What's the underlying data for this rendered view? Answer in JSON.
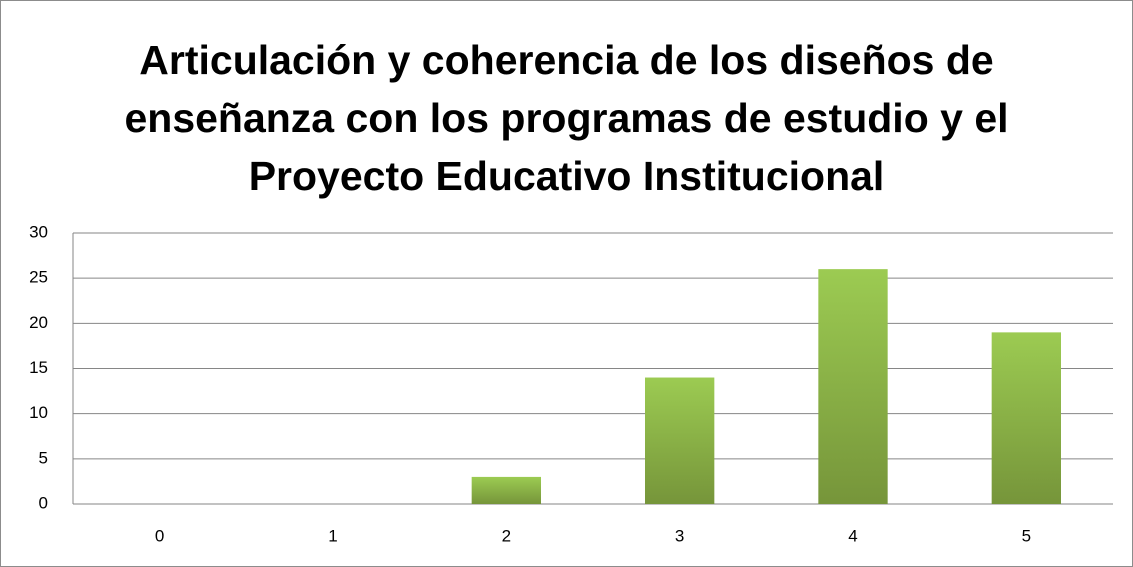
{
  "chart_data": {
    "type": "bar",
    "title": "Articulación y coherencia de los diseños de enseñanza con los programas de estudio y el Proyecto Educativo Institucional",
    "categories": [
      "0",
      "1",
      "2",
      "3",
      "4",
      "5"
    ],
    "values": [
      0,
      0,
      3,
      14,
      26,
      19
    ],
    "color": "#8db443",
    "ylim": [
      0,
      30
    ],
    "yticks": [
      0,
      5,
      10,
      15,
      20,
      25,
      30
    ],
    "grid": true
  }
}
